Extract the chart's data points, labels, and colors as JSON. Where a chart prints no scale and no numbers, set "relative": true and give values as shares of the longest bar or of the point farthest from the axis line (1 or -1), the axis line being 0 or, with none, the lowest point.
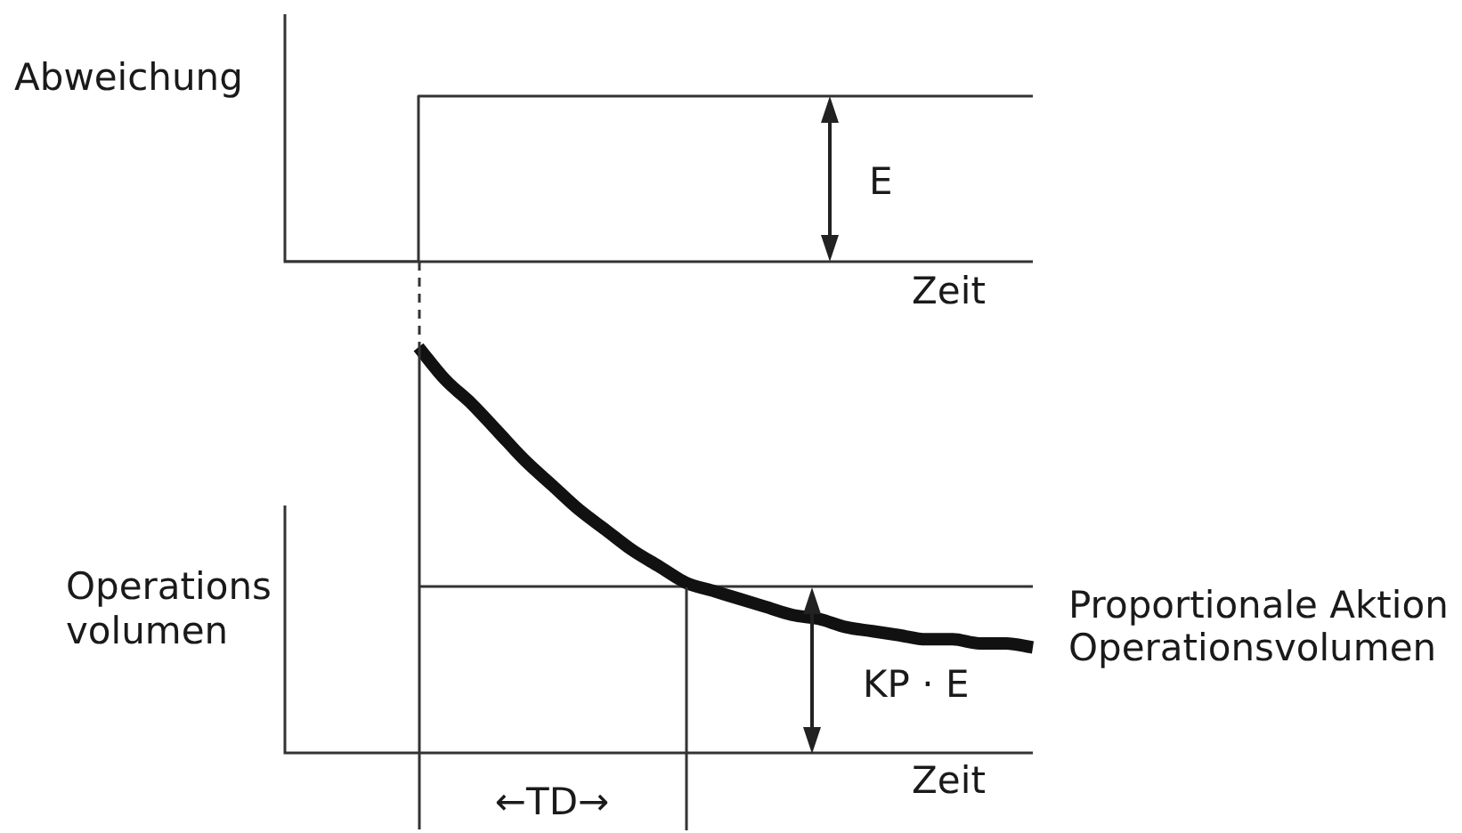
{
  "chart_data": [
    {
      "type": "step",
      "ylabel": "Abweichung",
      "xlabel": "Zeit",
      "annotations": [
        "E"
      ],
      "relative": true,
      "categories": [
        null,
        null,
        null,
        null,
        null,
        null,
        null,
        null,
        null,
        null,
        null,
        null,
        null,
        null,
        null,
        null,
        null,
        null,
        null,
        null,
        null,
        null,
        null,
        null,
        null,
        null,
        null,
        null,
        null
      ],
      "values": [
        0,
        0,
        0,
        0,
        0,
        1,
        1,
        1,
        1,
        1,
        1,
        1,
        1,
        1,
        1,
        1,
        1,
        1,
        1,
        1,
        1,
        1,
        1,
        1,
        1,
        1,
        1,
        1,
        1
      ],
      "color": "#333333"
    },
    {
      "type": "line",
      "ylabel": "Operations volumen",
      "xlabel": "Zeit",
      "annotations": [
        "KP · E",
        "←TD→"
      ],
      "relative": true,
      "categories": [
        null,
        null,
        null,
        null,
        null,
        null,
        null,
        null,
        null,
        null,
        null,
        null,
        null,
        null,
        null,
        null,
        null,
        null,
        null,
        null,
        null,
        null,
        null,
        null,
        null,
        null,
        null,
        null,
        null
      ],
      "series": [
        {
          "color": "#111111",
          "values": [
            null,
            null,
            null,
            null,
            null,
            1,
            0.92,
            0.86,
            0.79,
            0.72,
            0.66,
            0.6,
            0.55,
            0.5,
            0.46,
            0.42,
            0.4,
            0.38,
            0.36,
            0.34,
            0.33,
            0.31,
            0.3,
            0.29,
            0.28,
            0.28,
            0.27,
            0.27,
            0.26
          ]
        },
        {
          "name": "Proportionale Aktion Operationsvolumen",
          "color": "#333333",
          "values": [
            null,
            null,
            null,
            null,
            null,
            0.41,
            0.41,
            0.41,
            0.41,
            0.41,
            0.41,
            0.41,
            0.41,
            0.41,
            0.41,
            0.41,
            0.41,
            0.41,
            0.41,
            0.41,
            0.41,
            0.41,
            0.41,
            0.41,
            0.41,
            0.41,
            0.41,
            0.41,
            0.41
          ]
        }
      ]
    }
  ]
}
